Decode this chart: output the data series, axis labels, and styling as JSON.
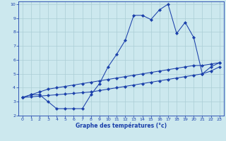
{
  "xlabel": "Graphe des températures (°c)",
  "xlim": [
    -0.5,
    23.5
  ],
  "ylim": [
    2,
    10.2
  ],
  "yticks": [
    2,
    3,
    4,
    5,
    6,
    7,
    8,
    9,
    10
  ],
  "xticks": [
    0,
    1,
    2,
    3,
    4,
    5,
    6,
    7,
    8,
    9,
    10,
    11,
    12,
    13,
    14,
    15,
    16,
    17,
    18,
    19,
    20,
    21,
    22,
    23
  ],
  "bg_color": "#cce8ee",
  "line_color": "#1a3faa",
  "grid_color": "#aacdd5",
  "y_main": [
    3.3,
    3.5,
    3.5,
    3.0,
    2.5,
    2.5,
    2.5,
    2.5,
    3.5,
    4.3,
    5.5,
    6.4,
    7.4,
    9.2,
    9.2,
    8.9,
    9.6,
    10.0,
    7.9,
    8.7,
    7.6,
    5.0,
    5.5,
    5.8
  ],
  "y_upper": [
    3.3,
    3.5,
    3.7,
    3.9,
    4.0,
    4.1,
    4.2,
    4.3,
    4.4,
    4.5,
    4.6,
    4.7,
    4.8,
    4.9,
    5.0,
    5.1,
    5.2,
    5.3,
    5.4,
    5.5,
    5.6,
    5.6,
    5.7,
    5.8
  ],
  "y_lower": [
    3.3,
    3.35,
    3.4,
    3.45,
    3.5,
    3.55,
    3.6,
    3.65,
    3.7,
    3.8,
    3.9,
    4.0,
    4.1,
    4.2,
    4.3,
    4.4,
    4.5,
    4.6,
    4.7,
    4.8,
    4.9,
    5.0,
    5.2,
    5.5
  ]
}
